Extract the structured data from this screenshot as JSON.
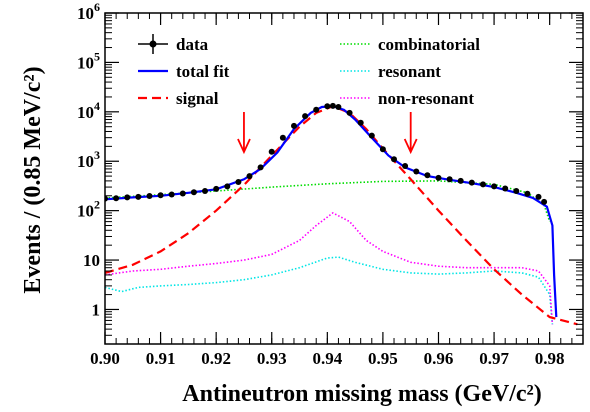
{
  "chart_data": {
    "type": "line",
    "xlabel": "Antineutron missing mass (GeV/c²)",
    "ylabel": "Events / (0.85 MeV/c²)",
    "xlim": [
      0.9,
      0.986
    ],
    "ylim": [
      0.2,
      1000000
    ],
    "y_scale": "log",
    "x_ticks": [
      "0.90",
      "0.91",
      "0.92",
      "0.93",
      "0.94",
      "0.95",
      "0.96",
      "0.97",
      "0.98"
    ],
    "y_ticks": [
      "1",
      "10",
      "10²",
      "10³",
      "10⁴",
      "10⁵",
      "10⁶"
    ],
    "grid": false,
    "legend_position": "top",
    "legend": {
      "data": "data",
      "total_fit": "total fit",
      "signal": "signal",
      "combinatorial": "combinatorial",
      "resonant": "resonant",
      "non_resonant": "non-resonant"
    },
    "colors": {
      "data": "#000000",
      "total_fit": "#0000ff",
      "signal": "#ff0000",
      "combinatorial": "#00dd00",
      "resonant": "#00e5e5",
      "non_resonant": "#ff00ff",
      "arrows": "#ff0000"
    },
    "arrows_x": [
      0.925,
      0.955
    ],
    "series": [
      {
        "key": "total_fit",
        "name": "total fit",
        "x": [
          0.9,
          0.905,
          0.91,
          0.915,
          0.92,
          0.925,
          0.928,
          0.931,
          0.934,
          0.937,
          0.939,
          0.941,
          0.943,
          0.945,
          0.948,
          0.951,
          0.954,
          0.958,
          0.962,
          0.966,
          0.97,
          0.974,
          0.977,
          0.9795,
          0.9805,
          0.9808,
          0.9812
        ],
        "y": [
          170,
          185,
          200,
          230,
          270,
          430,
          700,
          1500,
          4500,
          9500,
          12500,
          13000,
          11000,
          7000,
          3000,
          1300,
          750,
          500,
          420,
          360,
          300,
          230,
          180,
          120,
          50,
          5,
          0.7
        ]
      },
      {
        "key": "signal",
        "name": "signal",
        "x": [
          0.9,
          0.905,
          0.91,
          0.915,
          0.92,
          0.925,
          0.93,
          0.935,
          0.938,
          0.941,
          0.944,
          0.947,
          0.95,
          0.955,
          0.96,
          0.965,
          0.97,
          0.975,
          0.98,
          0.985
        ],
        "y": [
          5.5,
          8,
          15,
          35,
          100,
          330,
          1300,
          5000,
          9500,
          13000,
          9500,
          4500,
          1800,
          430,
          100,
          25,
          6.5,
          2.0,
          0.7,
          0.5
        ]
      },
      {
        "key": "combinatorial",
        "name": "combinatorial",
        "x": [
          0.9,
          0.91,
          0.92,
          0.93,
          0.94,
          0.95,
          0.96,
          0.97,
          0.976,
          0.979,
          0.98
        ],
        "y": [
          180,
          210,
          250,
          300,
          350,
          390,
          400,
          340,
          230,
          130,
          60
        ]
      },
      {
        "key": "resonant",
        "name": "resonant",
        "x": [
          0.9,
          0.903,
          0.906,
          0.91,
          0.915,
          0.92,
          0.925,
          0.93,
          0.935,
          0.94,
          0.942,
          0.945,
          0.95,
          0.955,
          0.96,
          0.965,
          0.97,
          0.975,
          0.978,
          0.98,
          0.9805
        ],
        "y": [
          2.8,
          2.3,
          2.8,
          3.0,
          3.2,
          3.5,
          4.0,
          5.0,
          7.0,
          11.0,
          11.5,
          9.0,
          6.5,
          5.5,
          5.2,
          5.5,
          6.0,
          5.5,
          4.5,
          2.0,
          0.5
        ]
      },
      {
        "key": "non_resonant",
        "name": "non-resonant",
        "x": [
          0.9,
          0.905,
          0.91,
          0.915,
          0.92,
          0.925,
          0.93,
          0.935,
          0.938,
          0.941,
          0.944,
          0.947,
          0.95,
          0.955,
          0.96,
          0.965,
          0.97,
          0.975,
          0.978,
          0.98,
          0.9805
        ],
        "y": [
          5.0,
          6.0,
          6.5,
          7.5,
          8.5,
          10.0,
          13,
          25,
          50,
          90,
          60,
          25,
          15,
          9.0,
          7.5,
          7.0,
          7.0,
          7.0,
          6.0,
          3.0,
          0.5
        ]
      },
      {
        "key": "data",
        "name": "data",
        "x": [
          0.9,
          0.902,
          0.904,
          0.906,
          0.908,
          0.91,
          0.912,
          0.914,
          0.916,
          0.918,
          0.92,
          0.922,
          0.924,
          0.926,
          0.928,
          0.93,
          0.932,
          0.934,
          0.936,
          0.938,
          0.94,
          0.941,
          0.942,
          0.944,
          0.946,
          0.948,
          0.95,
          0.952,
          0.954,
          0.956,
          0.958,
          0.96,
          0.962,
          0.964,
          0.966,
          0.968,
          0.97,
          0.972,
          0.974,
          0.976,
          0.978,
          0.979
        ],
        "y": [
          175,
          178,
          185,
          190,
          198,
          205,
          212,
          222,
          235,
          250,
          275,
          310,
          380,
          500,
          750,
          1550,
          3000,
          5200,
          8200,
          11000,
          13000,
          13200,
          12500,
          9500,
          6000,
          3300,
          1750,
          1100,
          800,
          620,
          520,
          460,
          430,
          400,
          370,
          340,
          310,
          280,
          250,
          220,
          190,
          150
        ]
      }
    ]
  }
}
